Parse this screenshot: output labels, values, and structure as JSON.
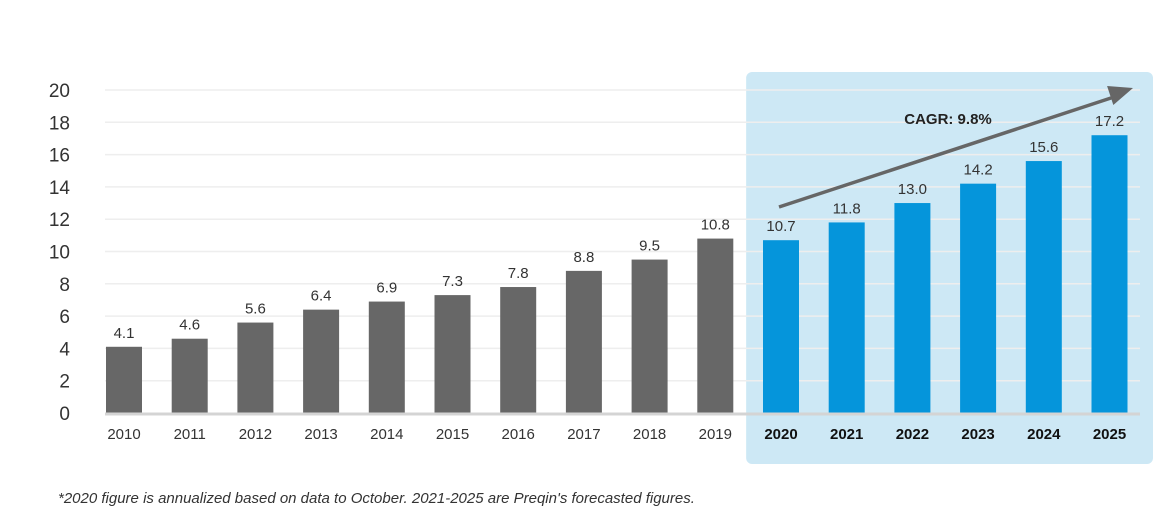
{
  "chart_data": {
    "type": "bar",
    "categories": [
      "2010",
      "2011",
      "2012",
      "2013",
      "2014",
      "2015",
      "2016",
      "2017",
      "2018",
      "2019",
      "2020",
      "2021",
      "2022",
      "2023",
      "2024",
      "2025"
    ],
    "values": [
      4.1,
      4.6,
      5.6,
      6.4,
      6.9,
      7.3,
      7.8,
      8.8,
      9.5,
      10.8,
      10.7,
      11.8,
      13.0,
      14.2,
      15.6,
      17.2
    ],
    "value_labels": [
      "4.1",
      "4.6",
      "5.6",
      "6.4",
      "6.9",
      "7.3",
      "7.8",
      "8.8",
      "9.5",
      "10.8",
      "10.7",
      "11.8",
      "13.0",
      "14.2",
      "15.6",
      "17.2"
    ],
    "forecast_start_index": 10,
    "ylim": [
      0,
      20
    ],
    "yticks": [
      "0",
      "2",
      "4",
      "6",
      "8",
      "10",
      "12",
      "14",
      "16",
      "18",
      "20"
    ],
    "grid": true,
    "annotation": "CAGR: 9.8%",
    "colors": {
      "historical": "#676767",
      "forecast": "#0595db",
      "forecast_panel": "#cde8f5",
      "arrow": "#666666",
      "grid": "#eeeeee",
      "axis": "#d4d4d4",
      "label": "#333333"
    }
  },
  "footnote": "*2020 figure is annualized based on data to October. 2021-2025 are Preqin's forecasted figures."
}
